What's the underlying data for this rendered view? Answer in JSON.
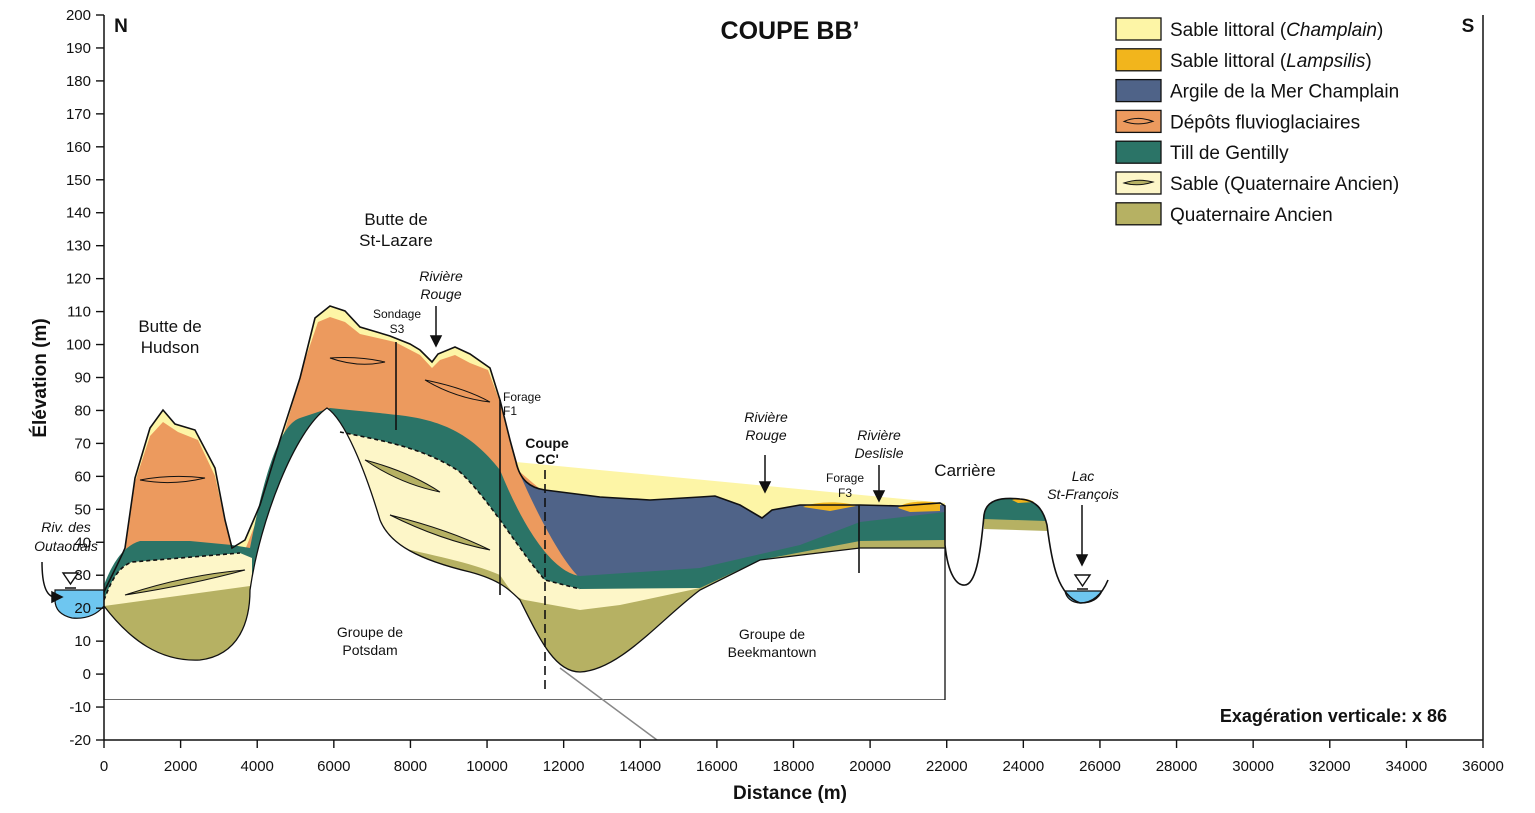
{
  "title": "COUPE BB’",
  "orientation": {
    "left": "N",
    "right": "S"
  },
  "axes": {
    "xlabel": "Distance (m)",
    "ylabel": "Élévation (m)",
    "xlim": [
      0,
      36000
    ],
    "ylim": [
      -20,
      200
    ],
    "xticks": [
      0,
      2000,
      4000,
      6000,
      8000,
      10000,
      12000,
      14000,
      16000,
      18000,
      20000,
      22000,
      24000,
      26000,
      28000,
      30000,
      32000,
      34000,
      36000
    ],
    "yticks": [
      -20,
      -10,
      0,
      10,
      20,
      30,
      40,
      50,
      60,
      70,
      80,
      90,
      100,
      110,
      120,
      130,
      140,
      150,
      160,
      170,
      180,
      190,
      200
    ]
  },
  "legend": [
    {
      "parts": [
        "Sable littoral (",
        "Champlain",
        ")"
      ],
      "color": "#fdf5a6"
    },
    {
      "parts": [
        "Sable littoral (",
        "Lampsilis",
        ")"
      ],
      "color": "#f2b51c"
    },
    {
      "parts": [
        "Argile de la Mer Champlain"
      ],
      "color": "#4f6388"
    },
    {
      "parts": [
        "Dépôts fluvioglaciaires"
      ],
      "color": "#ec9a5e"
    },
    {
      "parts": [
        "Till de Gentilly"
      ],
      "color": "#2b7467"
    },
    {
      "parts": [
        "Sable (Quaternaire Ancien)"
      ],
      "color": "#fdf6c8"
    },
    {
      "parts": [
        "Quaternaire Ancien"
      ],
      "color": "#b6b163"
    }
  ],
  "annotations": [
    {
      "lines": [
        "Butte de",
        "Hudson"
      ]
    },
    {
      "lines": [
        "Butte de",
        "St-Lazare"
      ]
    },
    {
      "lines": [
        "Sondage",
        "S3"
      ]
    },
    {
      "lines": [
        "Rivière",
        "Rouge"
      ]
    },
    {
      "lines": [
        "Forage",
        "F1"
      ]
    },
    {
      "lines": [
        "Coupe",
        "CC'"
      ]
    },
    {
      "lines": [
        "Rivière",
        "Rouge"
      ]
    },
    {
      "lines": [
        "Rivière",
        "Deslisle"
      ]
    },
    {
      "lines": [
        "Forage",
        "F3"
      ]
    },
    {
      "lines": [
        "Carrière"
      ]
    },
    {
      "lines": [
        "Lac",
        "St-François"
      ]
    },
    {
      "lines": [
        "Riv. des",
        "Outaouais"
      ]
    },
    {
      "lines": [
        "Groupe de",
        "Potsdam"
      ]
    },
    {
      "lines": [
        "Groupe de",
        "Beekmantown"
      ]
    }
  ],
  "note": "Exagération verticale: x 86"
}
